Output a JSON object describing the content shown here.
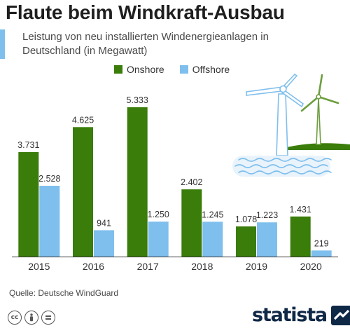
{
  "header": {
    "title": "Flaute beim Windkraft-Ausbau",
    "subtitle": "Leistung von neu installierten Windenergieanlagen in Deutschland (in Megawatt)"
  },
  "footer": {
    "source": "Quelle: Deutsche WindGuard",
    "brand": "statista",
    "license_icons": [
      "creative-commons-icon",
      "attribution-icon",
      "no-derivatives-icon"
    ]
  },
  "colors": {
    "onshore": "#3a7d0a",
    "offshore": "#7fbfed",
    "accent": "#7fbfed",
    "brand": "#0f2846",
    "illustration_line": "#6d9e3f"
  },
  "chart_data": {
    "type": "bar",
    "categories": [
      "2015",
      "2016",
      "2017",
      "2018",
      "2019",
      "2020"
    ],
    "series": [
      {
        "name": "Onshore",
        "values": [
          3731,
          4625,
          5333,
          2402,
          1078,
          1431
        ],
        "labels": [
          "3.731",
          "4.625",
          "5.333",
          "2.402",
          "1.078",
          "1.431"
        ]
      },
      {
        "name": "Offshore",
        "values": [
          2528,
          941,
          1250,
          1245,
          1223,
          219
        ],
        "labels": [
          "2.528",
          "941",
          "1.250",
          "1.245",
          "1.223",
          "219"
        ]
      }
    ],
    "title": "Flaute beim Windkraft-Ausbau",
    "subtitle": "Leistung von neu installierten Windenergieanlagen in Deutschland (in Megawatt)",
    "ylim": [
      0,
      5333
    ],
    "grid": false,
    "legend": "top-center",
    "data_labels": "above-bars"
  }
}
